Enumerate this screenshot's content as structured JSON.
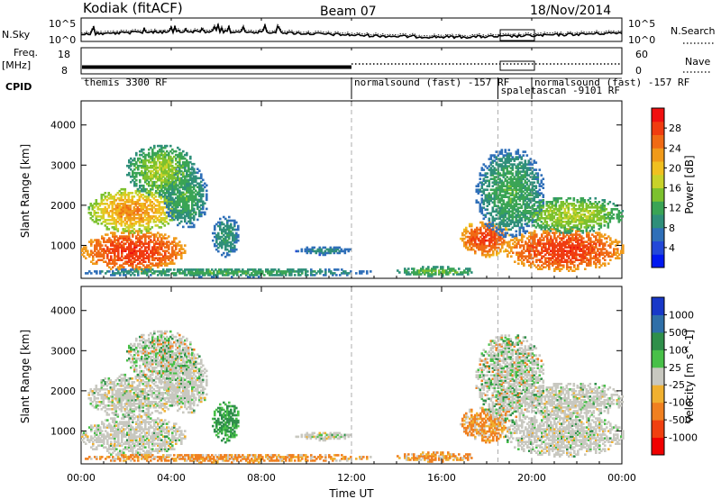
{
  "header": {
    "title": "Kodiak (fitACF)",
    "beam": "Beam 07",
    "date": "18/Nov/2014"
  },
  "noise_panel": {
    "left_label": "N.Sky",
    "right_label": "N.Search",
    "top_tick": "10^5",
    "bottom_tick": "10^0",
    "right_top_tick": "10^5",
    "right_bottom_tick": "10^0"
  },
  "freq_panel": {
    "left_label_1": "Freq.",
    "left_label_2": "[MHz]",
    "tick_top": "18",
    "tick_bottom": "8",
    "right_label": "Nave",
    "right_tick_top": "60",
    "right_tick_bottom": "0"
  },
  "cpid": {
    "label": "CPID",
    "segments": [
      {
        "text": "themis 3300 RF",
        "start_h": 0.0,
        "end_h": 12.0
      },
      {
        "text": "normalsound (fast) -157 RF",
        "start_h": 12.0,
        "end_h": 18.5
      },
      {
        "text": "spaletascan -9101 RF",
        "start_h": 18.5,
        "end_h": 20.0
      },
      {
        "text": "normalsound (fast) -157 RF",
        "start_h": 20.0,
        "end_h": 24.0
      }
    ]
  },
  "chart_data": [
    {
      "type": "heatmap",
      "name": "power",
      "ylabel": "Slant Range [km]",
      "ylim": [
        180,
        4600
      ],
      "yticks": [
        1000,
        2000,
        3000,
        4000
      ],
      "xlim_hours": [
        0,
        24
      ],
      "colorbar": {
        "label": "Power [dB]",
        "ticks": [
          4,
          8,
          12,
          16,
          20,
          24,
          28
        ],
        "range": [
          0,
          32
        ],
        "colors": [
          "#0018f0",
          "#2348d8",
          "#2f6fb8",
          "#2f8f7a",
          "#3aa455",
          "#7cc12e",
          "#c8d22a",
          "#f0c020",
          "#f09a1a",
          "#f06a14",
          "#f03c10",
          "#f01010"
        ]
      }
    },
    {
      "type": "heatmap",
      "name": "velocity",
      "ylabel": "Slant Range [km]",
      "ylim": [
        180,
        4600
      ],
      "yticks": [
        1000,
        2000,
        3000,
        4000
      ],
      "xlim_hours": [
        0,
        24
      ],
      "colorbar": {
        "label": "Velocity [m s^-1]",
        "ticks": [
          "-1000",
          "-500",
          "-100",
          "-25",
          "25",
          "100",
          "500",
          "1000"
        ],
        "colors": [
          "#f00000",
          "#f04010",
          "#f08020",
          "#f0b030",
          "#c8c8c0",
          "#48c048",
          "#2f8f4a",
          "#2f6fa8",
          "#1838c8"
        ]
      }
    }
  ],
  "xaxis": {
    "label": "Time UT",
    "ticks": [
      "00:00",
      "04:00",
      "08:00",
      "12:00",
      "16:00",
      "20:00",
      "00:00"
    ],
    "tick_hours": [
      0,
      4,
      8,
      12,
      16,
      20,
      24
    ],
    "dashed_hours": [
      12,
      18.5,
      20
    ]
  }
}
